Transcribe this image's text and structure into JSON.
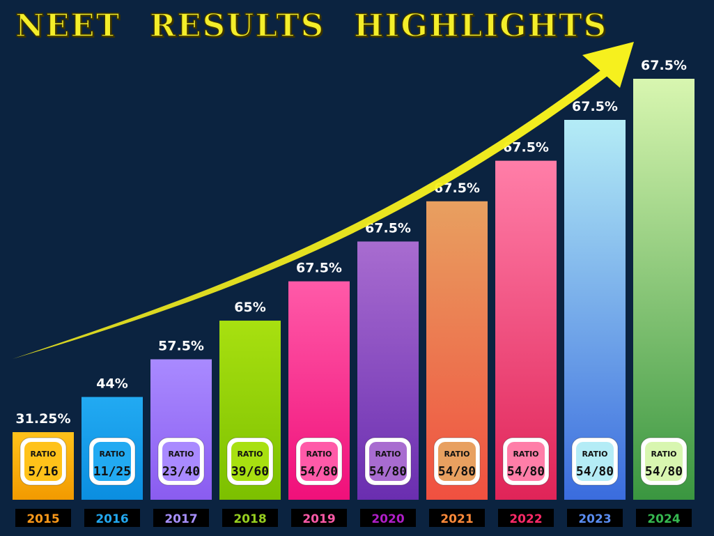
{
  "title": "NEET RESULTS HIGHLIGHTS",
  "ratio_label": "RATIO",
  "chart_data": {
    "type": "bar",
    "title": "NEET RESULTS HIGHLIGHTS",
    "categories": [
      "2015",
      "2016",
      "2017",
      "2018",
      "2019",
      "2020",
      "2021",
      "2022",
      "2023",
      "2024"
    ],
    "values": [
      31.25,
      44,
      57.5,
      65,
      67.5,
      67.5,
      67.5,
      67.5,
      67.5,
      67.5
    ],
    "value_labels": [
      "31.25%",
      "44%",
      "57.5%",
      "65%",
      "67.5%",
      "67.5%",
      "67.5%",
      "67.5%",
      "67.5%",
      "67.5%"
    ],
    "ratios": [
      "5/16",
      "11/25",
      "23/40",
      "39/60",
      "54/80",
      "54/80",
      "54/80",
      "54/80",
      "54/80",
      "54/80"
    ],
    "bar_colors": [
      [
        "#ffc21a",
        "#f29a00"
      ],
      [
        "#22aaf2",
        "#0b8ee0"
      ],
      [
        "#a98aff",
        "#8a5cf0"
      ],
      [
        "#a8e010",
        "#7cc000"
      ],
      [
        "#ff5aa8",
        "#f0107a"
      ],
      [
        "#a86cd0",
        "#6a2eb0"
      ],
      [
        "#e8a060",
        "#f05040"
      ],
      [
        "#ff7ea8",
        "#e02458"
      ],
      [
        "#b4ecf6",
        "#3a6cde"
      ],
      [
        "#d8f6b0",
        "#3a9640"
      ]
    ],
    "year_colors": [
      "#ff9a1a",
      "#22a8f0",
      "#a890ff",
      "#98d020",
      "#ff5aa8",
      "#b01ec8",
      "#ff8a3a",
      "#ff2a68",
      "#5a8cf0",
      "#36b850"
    ],
    "arrow_color": "#f6f01e"
  }
}
